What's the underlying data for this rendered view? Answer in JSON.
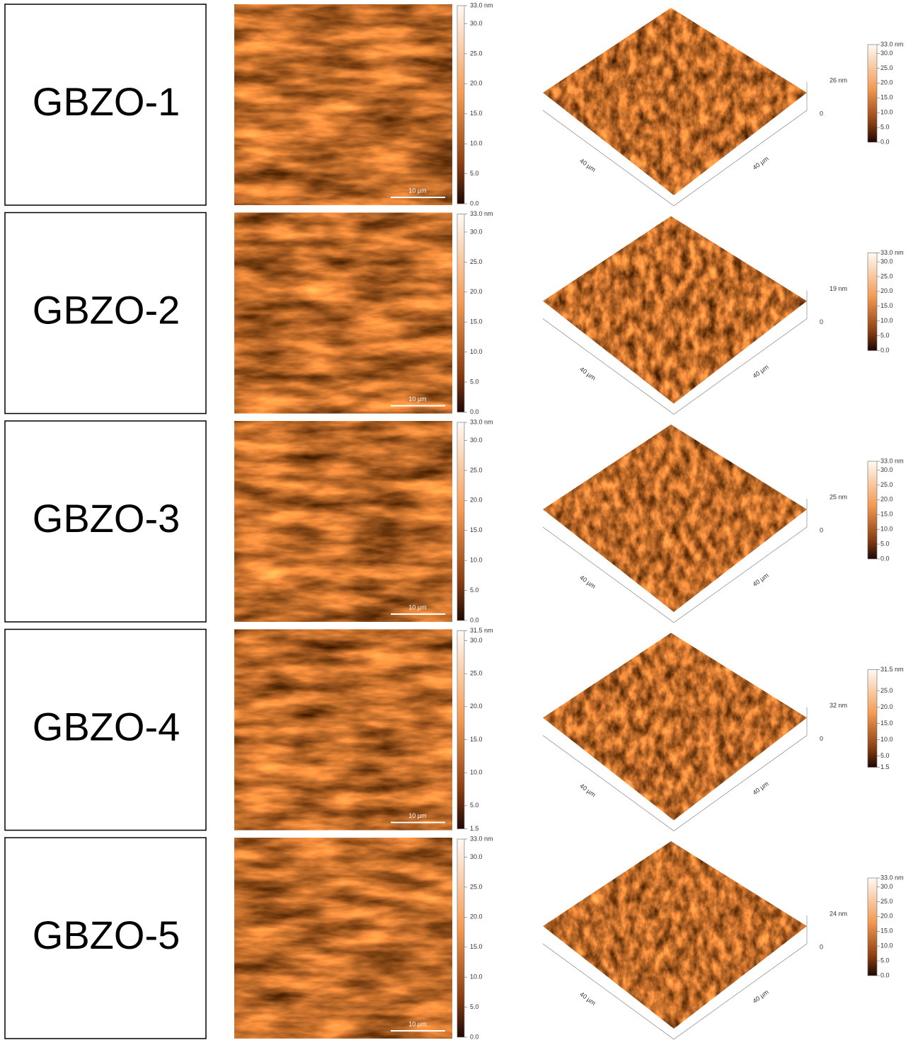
{
  "rows": [
    {
      "label": "GBZO-1",
      "map2d": {
        "scale_bar": "10 µm",
        "colorbar": [
          "33.0 nm",
          "30.0",
          "25.0",
          "20.0",
          "15.0",
          "10.0",
          "5.0",
          "0.0"
        ]
      },
      "map3d": {
        "z_max": "26 nm",
        "z_min": "0",
        "x_axis": "40 µm",
        "y_axis": "40 µm",
        "colorbar": [
          "33.0 nm",
          "30.0",
          "25.0",
          "20.0",
          "15.0",
          "10.0",
          "5.0",
          "0.0"
        ]
      }
    },
    {
      "label": "GBZO-2",
      "map2d": {
        "scale_bar": "10 µm",
        "colorbar": [
          "33.0 nm",
          "30.0",
          "25.0",
          "20.0",
          "15.0",
          "10.0",
          "5.0",
          "0.0"
        ]
      },
      "map3d": {
        "z_max": "19 nm",
        "z_min": "0",
        "x_axis": "40 µm",
        "y_axis": "40 µm",
        "colorbar": [
          "33.0 nm",
          "30.0",
          "25.0",
          "20.0",
          "15.0",
          "10.0",
          "5.0",
          "0.0"
        ]
      }
    },
    {
      "label": "GBZO-3",
      "map2d": {
        "scale_bar": "10 µm",
        "colorbar": [
          "33.0 nm",
          "30.0",
          "25.0",
          "20.0",
          "15.0",
          "10.0",
          "5.0",
          "0.0"
        ]
      },
      "map3d": {
        "z_max": "25 nm",
        "z_min": "0",
        "x_axis": "40 µm",
        "y_axis": "40 µm",
        "colorbar": [
          "33.0 nm",
          "30.0",
          "25.0",
          "20.0",
          "15.0",
          "10.0",
          "5.0",
          "0.0"
        ]
      }
    },
    {
      "label": "GBZO-4",
      "map2d": {
        "scale_bar": "10 µm",
        "colorbar": [
          "31.5 nm",
          "30.0",
          "25.0",
          "20.0",
          "15.0",
          "10.0",
          "5.0",
          "1.5"
        ]
      },
      "map3d": {
        "z_max": "32 nm",
        "z_min": "0",
        "x_axis": "40 µm",
        "y_axis": "40 µm",
        "colorbar": [
          "31.5 nm",
          "25.0",
          "20.0",
          "15.0",
          "10.0",
          "5.0",
          "1.5"
        ]
      }
    },
    {
      "label": "GBZO-5",
      "map2d": {
        "scale_bar": "10 µm",
        "colorbar": [
          "33.0 nm",
          "30.0",
          "25.0",
          "20.0",
          "15.0",
          "10.0",
          "5.0",
          "0.0"
        ]
      },
      "map3d": {
        "z_max": "24 nm",
        "z_min": "0",
        "x_axis": "40 µm",
        "y_axis": "40 µm",
        "colorbar": [
          "33.0 nm",
          "30.0",
          "25.0",
          "20.0",
          "15.0",
          "10.0",
          "5.0",
          "0.0"
        ]
      }
    }
  ]
}
